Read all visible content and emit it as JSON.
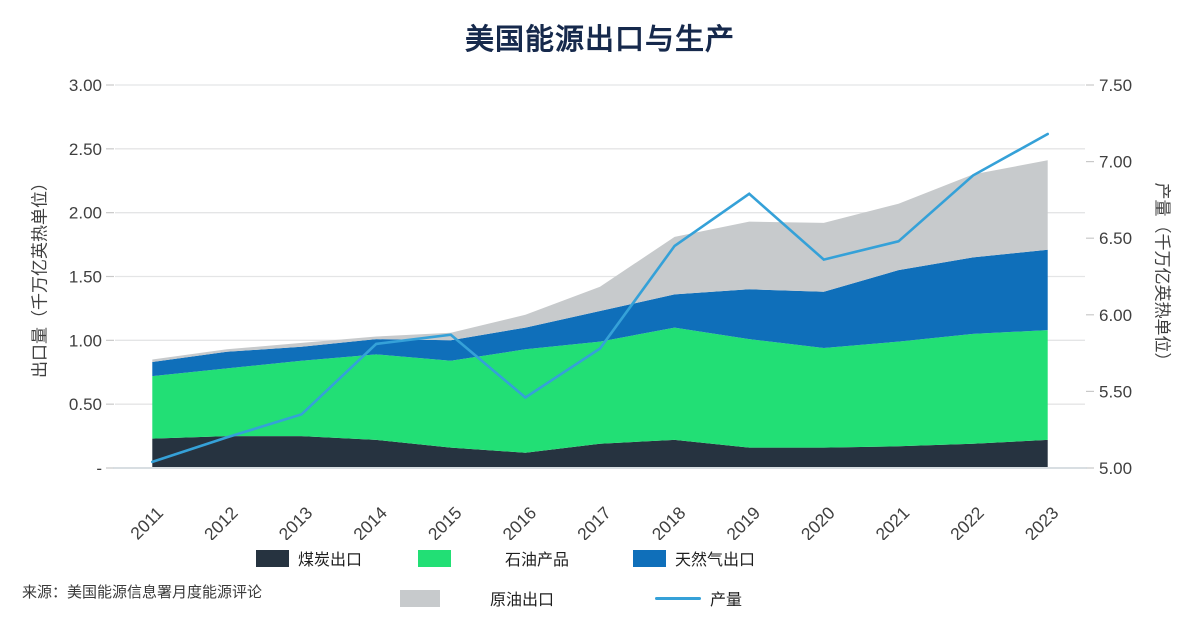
{
  "title": "美国能源出口与生产",
  "source": "来源：美国能源信息署月度能源评论",
  "colors": {
    "coal": "#263340",
    "petroleum": "#22df75",
    "natural_gas": "#0f6fba",
    "crude": "#c7cacc",
    "production_line": "#35a1d8",
    "grid": "#e4e5e6",
    "axis_line": "#ccd3d9",
    "tick_text": "#3f3f3f",
    "title_text": "#16294c"
  },
  "legend": {
    "coal": "煤炭出口",
    "petroleum": "石油产品",
    "natural_gas": "天然气出口",
    "crude": "原油出口",
    "production": "产量"
  },
  "chart_data": {
    "type": "area",
    "title": "美国能源出口与生产",
    "grid": true,
    "legend_position": "bottom",
    "categories": [
      "2011",
      "2012",
      "2013",
      "2014",
      "2015",
      "2016",
      "2017",
      "2018",
      "2019",
      "2020",
      "2021",
      "2022",
      "2023"
    ],
    "series": [
      {
        "name": "煤炭出口",
        "color": "#263340",
        "values": [
          0.23,
          0.25,
          0.25,
          0.22,
          0.16,
          0.12,
          0.19,
          0.22,
          0.16,
          0.16,
          0.17,
          0.19,
          0.22
        ]
      },
      {
        "name": "石油产品",
        "color": "#22df75",
        "values": [
          0.49,
          0.53,
          0.59,
          0.67,
          0.68,
          0.81,
          0.8,
          0.88,
          0.85,
          0.78,
          0.82,
          0.86,
          0.86
        ]
      },
      {
        "name": "天然气出口",
        "color": "#0f6fba",
        "values": [
          0.11,
          0.13,
          0.11,
          0.12,
          0.16,
          0.17,
          0.24,
          0.26,
          0.39,
          0.44,
          0.56,
          0.6,
          0.63
        ]
      },
      {
        "name": "原油出口",
        "color": "#c7cacc",
        "values": [
          0.02,
          0.02,
          0.03,
          0.02,
          0.06,
          0.1,
          0.19,
          0.45,
          0.53,
          0.54,
          0.52,
          0.65,
          0.7
        ]
      }
    ],
    "line_series": {
      "name": "产量",
      "color": "#35a1d8",
      "values": [
        5.04,
        5.2,
        5.35,
        5.81,
        5.87,
        5.46,
        5.78,
        6.45,
        6.79,
        6.36,
        6.48,
        6.91,
        7.18
      ]
    },
    "left_axis": {
      "label": "出口量（千万亿英热单位）",
      "min": 0,
      "max": 3.0,
      "ticks": [
        "3.00",
        "2.50",
        "2.00",
        "1.50",
        "1.00",
        "0.50",
        "-"
      ]
    },
    "right_axis": {
      "label": "产量（千万亿英热单位）",
      "min": 5.0,
      "max": 7.5,
      "ticks": [
        "7.50",
        "7.00",
        "6.50",
        "6.00",
        "5.50",
        "5.00"
      ]
    }
  }
}
